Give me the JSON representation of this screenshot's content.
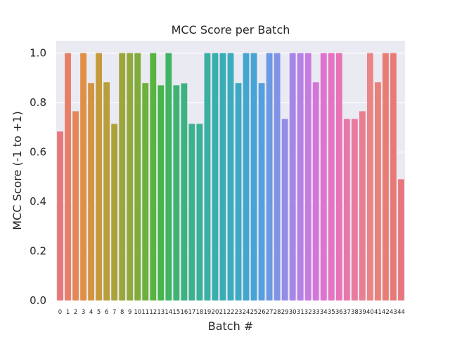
{
  "chart_data": {
    "type": "bar",
    "title": "MCC Score per Batch",
    "xlabel": "Batch #",
    "ylabel": "MCC Score (-1 to +1)",
    "ylim": [
      0,
      1.05
    ],
    "yticks": [
      "0.0",
      "0.2",
      "0.4",
      "0.6",
      "0.8",
      "1.0"
    ],
    "ytick_values": [
      0,
      0.2,
      0.4,
      0.6,
      0.8,
      1.0
    ],
    "grid": true,
    "background_color": "#eaeaf2",
    "categories": [
      "0",
      "1",
      "2",
      "3",
      "4",
      "5",
      "6",
      "7",
      "8",
      "9",
      "10",
      "11",
      "12",
      "13",
      "14",
      "15",
      "16",
      "17",
      "18",
      "19",
      "20",
      "21",
      "22",
      "23",
      "24",
      "25",
      "26",
      "27",
      "28",
      "29",
      "30",
      "31",
      "32",
      "33",
      "34",
      "35",
      "36",
      "37",
      "38",
      "39",
      "40",
      "41",
      "42",
      "43",
      "44"
    ],
    "values": [
      0.683,
      1.0,
      0.765,
      1.0,
      0.879,
      1.0,
      0.882,
      0.714,
      1.0,
      1.0,
      1.0,
      0.879,
      1.0,
      0.87,
      1.0,
      0.87,
      0.878,
      0.714,
      0.714,
      1.0,
      1.0,
      1.0,
      1.0,
      0.879,
      1.0,
      1.0,
      0.879,
      1.0,
      1.0,
      0.734,
      1.0,
      1.0,
      1.0,
      0.882,
      1.0,
      1.0,
      1.0,
      0.734,
      0.734,
      0.765,
      1.0,
      0.882,
      1.0,
      1.0,
      0.49
    ],
    "colors": [
      "#e8777b",
      "#e77f68",
      "#e58755",
      "#e18e46",
      "#d39440",
      "#c59a3c",
      "#b89f3b",
      "#aba33a",
      "#9da63a",
      "#8fa93a",
      "#7fac3b",
      "#6db03c",
      "#58b43f",
      "#45b649",
      "#3fb462",
      "#3eb373",
      "#3db281",
      "#3cb18d",
      "#3bb098",
      "#3aafa3",
      "#3aaeac",
      "#3aacb5",
      "#3cabbd",
      "#3ea9c5",
      "#42a6ce",
      "#48a3d7",
      "#559fde",
      "#6b99e2",
      "#8093e6",
      "#948de7",
      "#a586e7",
      "#b680e5",
      "#c67be0",
      "#d476d9",
      "#e072d0",
      "#e672c3",
      "#e873b6",
      "#e976a9",
      "#e97a9d",
      "#ea7e91",
      "#eb8484",
      "#ea8178",
      "#e97d73",
      "#e87976",
      "#e8777b"
    ]
  }
}
